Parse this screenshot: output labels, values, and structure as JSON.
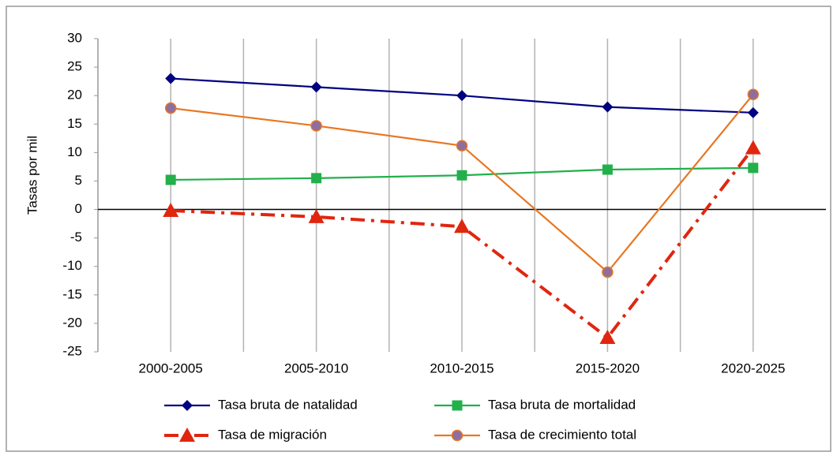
{
  "chart_data": {
    "type": "line",
    "y_label": "Tasas por mil",
    "categories": [
      "2000-2005",
      "2005-2010",
      "2010-2015",
      "2015-2020",
      "2020-2025"
    ],
    "series": [
      {
        "name": "Tasa bruta de natalidad",
        "color": "#000080",
        "marker": "diamond",
        "line_style": "solid",
        "values": [
          23,
          21.5,
          20,
          18,
          17
        ]
      },
      {
        "name": "Tasa bruta de mortalidad",
        "color": "#22b04b",
        "marker": "square",
        "line_style": "solid",
        "values": [
          5.2,
          5.5,
          6,
          7,
          7.3
        ]
      },
      {
        "name": "Tasa de migración",
        "color": "#e0260f",
        "marker": "triangle",
        "line_style": "dashdot",
        "values": [
          -0.2,
          -1.3,
          -3,
          -22.5,
          10.8
        ]
      },
      {
        "name": "Tasa de crecimiento total",
        "color": "#e87722",
        "marker": "circle",
        "marker_fill": "#8e6e9e",
        "line_style": "solid",
        "values": [
          17.8,
          14.7,
          11.2,
          -11,
          20.2
        ]
      }
    ],
    "ylim": [
      -25,
      30
    ],
    "yticks": [
      30,
      25,
      20,
      15,
      10,
      5,
      0,
      -5,
      -10,
      -15,
      -20,
      -25
    ],
    "grid": "vertical",
    "legend": "bottom"
  }
}
